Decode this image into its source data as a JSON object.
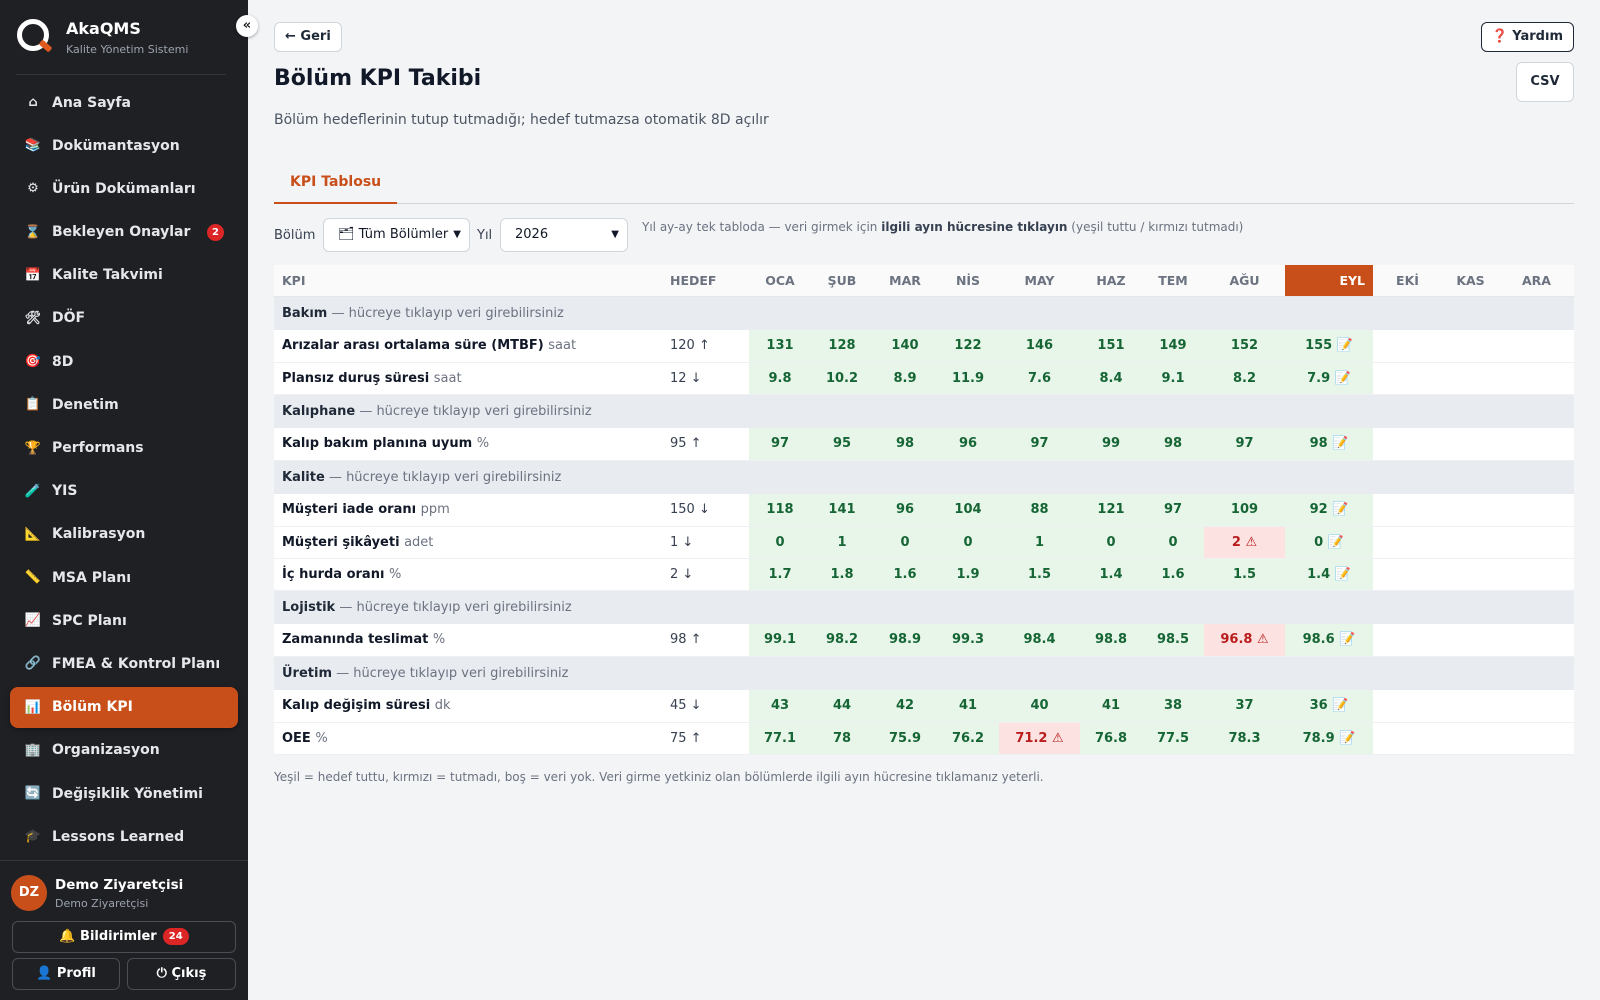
{
  "brand": {
    "name": "AkaQMS",
    "subtitle": "Kalite Yönetim Sistemi",
    "collapse": "«"
  },
  "nav": [
    {
      "icon": "⌂",
      "label": "Ana Sayfa"
    },
    {
      "icon": "📚",
      "label": "Dokümantasyon"
    },
    {
      "icon": "⚙",
      "label": "Ürün Dokümanları"
    },
    {
      "icon": "⌛",
      "label": "Bekleyen Onaylar",
      "badge": "2"
    },
    {
      "icon": "📅",
      "label": "Kalite Takvimi"
    },
    {
      "icon": "🛠",
      "label": "DÖF"
    },
    {
      "icon": "🎯",
      "label": "8D"
    },
    {
      "icon": "📋",
      "label": "Denetim"
    },
    {
      "icon": "🏆",
      "label": "Performans"
    },
    {
      "icon": "🧪",
      "label": "YIS"
    },
    {
      "icon": "📐",
      "label": "Kalibrasyon"
    },
    {
      "icon": "📏",
      "label": "MSA Planı"
    },
    {
      "icon": "📈",
      "label": "SPC Planı"
    },
    {
      "icon": "🔗",
      "label": "FMEA & Kontrol Planı"
    },
    {
      "icon": "📊",
      "label": "Bölüm KPI",
      "active": true
    },
    {
      "icon": "🏢",
      "label": "Organizasyon"
    },
    {
      "icon": "🔄",
      "label": "Değişiklik Yönetimi"
    },
    {
      "icon": "🎓",
      "label": "Lessons Learned"
    }
  ],
  "user": {
    "initials": "DZ",
    "name": "Demo Ziyaretçisi",
    "role": "Demo Ziyaretçisi"
  },
  "buttons": {
    "notifications": "🔔 Bildirimler",
    "notifications_count": "24",
    "profile": "👤 Profil",
    "logout": "⏻ Çıkış",
    "back": "← Geri",
    "help": "❓ Yardım",
    "csv": "CSV"
  },
  "page": {
    "title": "Bölüm KPI Takibi",
    "subtitle": "Bölüm hedeflerinin tutup tutmadığı; hedef tutmazsa otomatik 8D açılır",
    "tab": "KPI Tablosu"
  },
  "filters": {
    "dept_label": "Bölüm",
    "dept_value": "🗂 Tüm Bölümler",
    "year_label": "Yıl",
    "year_value": "2026",
    "hint_pre": "Yıl ay-ay tek tabloda — veri girmek için ",
    "hint_bold": "ilgili ayın hücresine tıklayın",
    "hint_post": " (yeşil tuttu / kırmızı tutmadı)"
  },
  "table": {
    "kpi_header": "KPI",
    "target_header": "HEDEF",
    "months": [
      "OCA",
      "ŞUB",
      "MAR",
      "NİS",
      "MAY",
      "HAZ",
      "TEM",
      "AĞU",
      "EYL",
      "EKİ",
      "KAS",
      "ARA"
    ],
    "current_month_index": 8,
    "group_hint": "— hücreye tıklayıp veri girebilirsiniz",
    "edit_icon": "📝",
    "warn_icon": "⚠",
    "groups": [
      {
        "name": "Bakım",
        "rows": [
          {
            "kpi": "Arızalar arası ortalama süre (MTBF)",
            "unit": "saat",
            "target": "120 ↑",
            "values": [
              "131",
              "128",
              "140",
              "122",
              "146",
              "151",
              "149",
              "152",
              "155",
              "",
              "",
              ""
            ],
            "status": [
              "ok",
              "ok",
              "ok",
              "ok",
              "ok",
              "ok",
              "ok",
              "ok",
              "ok",
              "",
              "",
              ""
            ]
          },
          {
            "kpi": "Plansız duruş süresi",
            "unit": "saat",
            "target": "12 ↓",
            "values": [
              "9.8",
              "10.2",
              "8.9",
              "11.9",
              "7.6",
              "8.4",
              "9.1",
              "8.2",
              "7.9",
              "",
              "",
              ""
            ],
            "status": [
              "ok",
              "ok",
              "ok",
              "ok",
              "ok",
              "ok",
              "ok",
              "ok",
              "ok",
              "",
              "",
              ""
            ]
          }
        ]
      },
      {
        "name": "Kalıphane",
        "rows": [
          {
            "kpi": "Kalıp bakım planına uyum",
            "unit": "%",
            "target": "95 ↑",
            "values": [
              "97",
              "95",
              "98",
              "96",
              "97",
              "99",
              "98",
              "97",
              "98",
              "",
              "",
              ""
            ],
            "status": [
              "ok",
              "ok",
              "ok",
              "ok",
              "ok",
              "ok",
              "ok",
              "ok",
              "ok",
              "",
              "",
              ""
            ]
          }
        ]
      },
      {
        "name": "Kalite",
        "rows": [
          {
            "kpi": "Müşteri iade oranı",
            "unit": "ppm",
            "target": "150 ↓",
            "values": [
              "118",
              "141",
              "96",
              "104",
              "88",
              "121",
              "97",
              "109",
              "92",
              "",
              "",
              ""
            ],
            "status": [
              "ok",
              "ok",
              "ok",
              "ok",
              "ok",
              "ok",
              "ok",
              "ok",
              "ok",
              "",
              "",
              ""
            ]
          },
          {
            "kpi": "Müşteri şikâyeti",
            "unit": "adet",
            "target": "1 ↓",
            "values": [
              "0",
              "1",
              "0",
              "0",
              "1",
              "0",
              "0",
              "2",
              "0",
              "",
              "",
              ""
            ],
            "status": [
              "ok",
              "ok",
              "ok",
              "ok",
              "ok",
              "ok",
              "ok",
              "bad",
              "ok",
              "",
              "",
              ""
            ]
          },
          {
            "kpi": "İç hurda oranı",
            "unit": "%",
            "target": "2 ↓",
            "values": [
              "1.7",
              "1.8",
              "1.6",
              "1.9",
              "1.5",
              "1.4",
              "1.6",
              "1.5",
              "1.4",
              "",
              "",
              ""
            ],
            "status": [
              "ok",
              "ok",
              "ok",
              "ok",
              "ok",
              "ok",
              "ok",
              "ok",
              "ok",
              "",
              "",
              ""
            ]
          }
        ]
      },
      {
        "name": "Lojistik",
        "rows": [
          {
            "kpi": "Zamanında teslimat",
            "unit": "%",
            "target": "98 ↑",
            "values": [
              "99.1",
              "98.2",
              "98.9",
              "99.3",
              "98.4",
              "98.8",
              "98.5",
              "96.8",
              "98.6",
              "",
              "",
              ""
            ],
            "status": [
              "ok",
              "ok",
              "ok",
              "ok",
              "ok",
              "ok",
              "ok",
              "bad",
              "ok",
              "",
              "",
              ""
            ]
          }
        ]
      },
      {
        "name": "Üretim",
        "rows": [
          {
            "kpi": "Kalıp değişim süresi",
            "unit": "dk",
            "target": "45 ↓",
            "values": [
              "43",
              "44",
              "42",
              "41",
              "40",
              "41",
              "38",
              "37",
              "36",
              "",
              "",
              ""
            ],
            "status": [
              "ok",
              "ok",
              "ok",
              "ok",
              "ok",
              "ok",
              "ok",
              "ok",
              "ok",
              "",
              "",
              ""
            ]
          },
          {
            "kpi": "OEE",
            "unit": "%",
            "target": "75 ↑",
            "values": [
              "77.1",
              "78",
              "75.9",
              "76.2",
              "71.2",
              "76.8",
              "77.5",
              "78.3",
              "78.9",
              "",
              "",
              ""
            ],
            "status": [
              "ok",
              "ok",
              "ok",
              "ok",
              "bad",
              "ok",
              "ok",
              "ok",
              "ok",
              "",
              "",
              ""
            ]
          }
        ]
      }
    ]
  },
  "footer_note": "Yeşil = hedef tuttu, kırmızı = tutmadı, boş = veri yok. Veri girme yetkiniz olan bölümlerde ilgili ayın hücresine tıklamanız yeterli.",
  "colors": {
    "accent": "#c94f1a",
    "sidebar": "#1f2024",
    "ok_bg": "#e8f6ea",
    "ok_text": "#166534",
    "bad_bg": "#fde2e2",
    "bad_text": "#b91c1c"
  }
}
